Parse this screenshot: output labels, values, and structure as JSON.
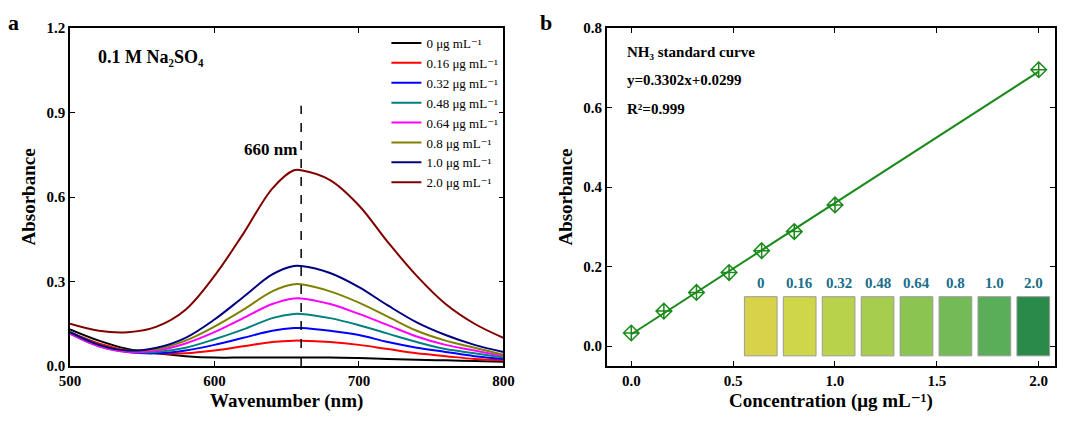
{
  "chart_data": [
    {
      "type": "line",
      "panel": "a",
      "x_label": "Wavenumber (nm)",
      "y_label": "Absorbance",
      "annotations": [
        "0.1 M Na₂SO₄"
      ],
      "reference_line": {
        "x": 660,
        "label": "660 nm"
      },
      "line_style": "smooth",
      "legend": "upper right",
      "xlim": [
        500,
        800
      ],
      "xticks": [
        500,
        600,
        700,
        800
      ],
      "ylim": [
        0,
        1.2
      ],
      "yticks": [
        {
          "value": 0,
          "label": "0.0"
        },
        {
          "value": 0.3,
          "label": "0.3"
        },
        {
          "value": 0.6,
          "label": "0.6"
        },
        {
          "value": 0.9,
          "label": "0.9"
        },
        {
          "value": 1.2,
          "label": "1.2"
        }
      ],
      "x": [
        500,
        520,
        540,
        560,
        580,
        600,
        620,
        640,
        655,
        660,
        680,
        700,
        720,
        740,
        760,
        780,
        800
      ],
      "series": [
        {
          "name": "0 μg mL⁻¹",
          "color": "#000000",
          "values": [
            0.13,
            0.09,
            0.06,
            0.045,
            0.035,
            0.03,
            0.03,
            0.03,
            0.03,
            0.03,
            0.03,
            0.028,
            0.025,
            0.022,
            0.02,
            0.018,
            0.015
          ]
        },
        {
          "name": "0.16 μg mL⁻¹",
          "color": "#ff0000",
          "values": [
            0.12,
            0.08,
            0.055,
            0.045,
            0.045,
            0.055,
            0.07,
            0.085,
            0.09,
            0.09,
            0.085,
            0.075,
            0.06,
            0.045,
            0.035,
            0.025,
            0.02
          ]
        },
        {
          "name": "0.32 μg mL⁻¹",
          "color": "#0000ff",
          "values": [
            0.12,
            0.075,
            0.05,
            0.045,
            0.055,
            0.075,
            0.1,
            0.125,
            0.135,
            0.135,
            0.125,
            0.11,
            0.085,
            0.065,
            0.05,
            0.035,
            0.025
          ]
        },
        {
          "name": "0.48 μg mL⁻¹",
          "color": "#008080",
          "values": [
            0.115,
            0.07,
            0.05,
            0.05,
            0.065,
            0.095,
            0.13,
            0.17,
            0.185,
            0.185,
            0.17,
            0.145,
            0.115,
            0.085,
            0.06,
            0.045,
            0.03
          ]
        },
        {
          "name": "0.64 μg mL⁻¹",
          "color": "#ff00ff",
          "values": [
            0.115,
            0.07,
            0.05,
            0.055,
            0.08,
            0.12,
            0.17,
            0.22,
            0.24,
            0.24,
            0.22,
            0.185,
            0.145,
            0.105,
            0.075,
            0.055,
            0.035
          ]
        },
        {
          "name": "0.8 μg mL⁻¹",
          "color": "#808000",
          "values": [
            0.12,
            0.075,
            0.055,
            0.06,
            0.09,
            0.14,
            0.2,
            0.265,
            0.29,
            0.29,
            0.265,
            0.225,
            0.175,
            0.125,
            0.09,
            0.065,
            0.04
          ]
        },
        {
          "name": "1.0 μg mL⁻¹",
          "color": "#000080",
          "values": [
            0.12,
            0.075,
            0.055,
            0.065,
            0.1,
            0.165,
            0.245,
            0.325,
            0.355,
            0.355,
            0.33,
            0.28,
            0.215,
            0.155,
            0.11,
            0.075,
            0.05
          ]
        },
        {
          "name": "2.0 μg mL⁻¹",
          "color": "#800000",
          "values": [
            0.15,
            0.125,
            0.12,
            0.14,
            0.2,
            0.32,
            0.47,
            0.63,
            0.695,
            0.695,
            0.66,
            0.57,
            0.44,
            0.32,
            0.22,
            0.15,
            0.1
          ]
        }
      ]
    },
    {
      "type": "scatter",
      "panel": "b",
      "x_label": "Concentration (μg mL⁻¹)",
      "y_label": "Absorbance",
      "annotations": [
        "NH₃ standard curve",
        "y=0.3302x+0.0299",
        "R²=0.999"
      ],
      "fit": {
        "slope": 0.3302,
        "intercept": 0.0299
      },
      "marker": "diamond",
      "color": "#1a8a1a",
      "xlim": [
        -0.12,
        2.08
      ],
      "xticks": [
        {
          "value": 0,
          "label": "0.0"
        },
        {
          "value": 0.5,
          "label": "0.5"
        },
        {
          "value": 1,
          "label": "1.0"
        },
        {
          "value": 1.5,
          "label": "1.5"
        },
        {
          "value": 2,
          "label": "2.0"
        }
      ],
      "ylim": [
        -0.05,
        0.8
      ],
      "yticks": [
        {
          "value": 0,
          "label": "0.0"
        },
        {
          "value": 0.2,
          "label": "0.2"
        },
        {
          "value": 0.4,
          "label": "0.4"
        },
        {
          "value": 0.6,
          "label": "0.6"
        },
        {
          "value": 0.8,
          "label": "0.8"
        }
      ],
      "x": [
        0,
        0.16,
        0.32,
        0.48,
        0.64,
        0.8,
        1.0,
        2.0
      ],
      "values": [
        0.033,
        0.088,
        0.135,
        0.185,
        0.24,
        0.288,
        0.355,
        0.695
      ],
      "inset": {
        "labels": [
          "0",
          "0.16",
          "0.32",
          "0.48",
          "0.64",
          "0.8",
          "1.0",
          "2.0"
        ],
        "colors": [
          "#d8d24a",
          "#cfd64a",
          "#b9d24c",
          "#a6cd4e",
          "#8cc452",
          "#74bb58",
          "#5aae5a",
          "#2a8a4a"
        ]
      }
    }
  ]
}
